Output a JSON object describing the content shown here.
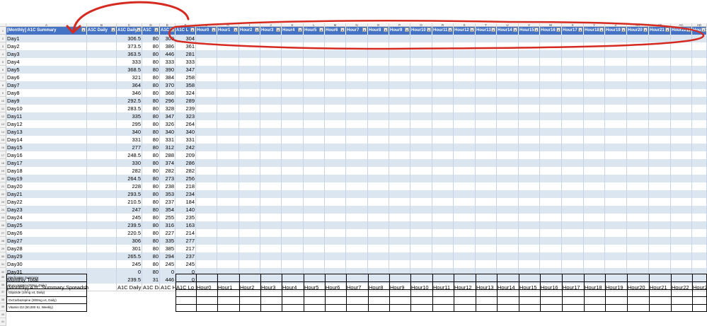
{
  "columns": [
    "A",
    "B",
    "C",
    "D",
    "E",
    "F",
    "G",
    "H",
    "I",
    "J",
    "K",
    "L",
    "M",
    "N",
    "O",
    "P",
    "Q",
    "R",
    "S",
    "T",
    "U",
    "V",
    "W",
    "X",
    "Y",
    "Z",
    "AA",
    "AB",
    "AC",
    "AD"
  ],
  "table": {
    "headers": [
      "[Monthly] A1C Summary",
      "A1C Daily",
      "A1C Daily A",
      "A1C",
      "A1C",
      "A1C L",
      "Hour0",
      "Hour1",
      "Hour2",
      "Hour3",
      "Hour4",
      "Hour5",
      "Hour6",
      "Hour7",
      "Hour8",
      "Hour9",
      "Hour10",
      "Hour11",
      "Hour12",
      "Hour13",
      "Hour14",
      "Hour15",
      "Hour16",
      "Hour17",
      "Hour18",
      "Hour19",
      "Hour20",
      "Hour21",
      "Hour22",
      "Hour23"
    ],
    "rows": [
      [
        "Day1",
        "306.5",
        "80",
        "309",
        "304"
      ],
      [
        "Day2",
        "373.5",
        "80",
        "386",
        "361"
      ],
      [
        "Day3",
        "363.5",
        "80",
        "446",
        "281"
      ],
      [
        "Day4",
        "333",
        "80",
        "333",
        "333"
      ],
      [
        "Day5",
        "368.5",
        "80",
        "390",
        "347"
      ],
      [
        "Day6",
        "321",
        "80",
        "384",
        "258"
      ],
      [
        "Day7",
        "364",
        "80",
        "370",
        "358"
      ],
      [
        "Day8",
        "346",
        "80",
        "368",
        "324"
      ],
      [
        "Day9",
        "292.5",
        "80",
        "296",
        "289"
      ],
      [
        "Day10",
        "283.5",
        "80",
        "328",
        "239"
      ],
      [
        "Day11",
        "335",
        "80",
        "347",
        "323"
      ],
      [
        "Day12",
        "295",
        "80",
        "326",
        "264"
      ],
      [
        "Day13",
        "340",
        "80",
        "340",
        "340"
      ],
      [
        "Day14",
        "331",
        "80",
        "331",
        "331"
      ],
      [
        "Day15",
        "277",
        "80",
        "312",
        "242"
      ],
      [
        "Day16",
        "248.5",
        "80",
        "288",
        "209"
      ],
      [
        "Day17",
        "330",
        "80",
        "374",
        "286"
      ],
      [
        "Day18",
        "282",
        "80",
        "282",
        "282"
      ],
      [
        "Day19",
        "264.5",
        "80",
        "273",
        "256"
      ],
      [
        "Day20",
        "228",
        "80",
        "238",
        "218"
      ],
      [
        "Day21",
        "293.5",
        "80",
        "353",
        "234"
      ],
      [
        "Day22",
        "210.5",
        "80",
        "237",
        "184"
      ],
      [
        "Day23",
        "247",
        "80",
        "354",
        "140"
      ],
      [
        "Day24",
        "245",
        "80",
        "255",
        "235"
      ],
      [
        "Day25",
        "239.5",
        "80",
        "316",
        "163"
      ],
      [
        "Day26",
        "220.5",
        "80",
        "227",
        "214"
      ],
      [
        "Day27",
        "306",
        "80",
        "335",
        "277"
      ],
      [
        "Day28",
        "301",
        "80",
        "385",
        "217"
      ],
      [
        "Day29",
        "265.5",
        "80",
        "294",
        "237"
      ],
      [
        "Day30",
        "245",
        "80",
        "245",
        "245"
      ],
      [
        "Day31",
        "0",
        "80",
        "0",
        "0"
      ]
    ],
    "total_label": "Monthly Total",
    "total": [
      "239.5",
      "31",
      "446",
      "0"
    ]
  },
  "repeat_headers": [
    "[Monthly] A1C Summary Spreadsh",
    "A1C Daily Av",
    "A1C Daily C",
    "A1C Hi",
    "A1C Lo",
    "Hour0",
    "Hour1",
    "Hour2",
    "Hour3",
    "Hour4",
    "Hour5",
    "Hour6",
    "Hour7",
    "Hour8",
    "Hour9",
    "Hour10",
    "Hour11",
    "Hour12",
    "Hour13",
    "Hour14",
    "Hour15",
    "Hour16",
    "Hour17",
    "Hour18",
    "Hour19",
    "Hour20",
    "Hour21",
    "Hour22",
    "Hour23"
  ],
  "medications": [
    "Medication Summary",
    "Rosuvastatin (20mg, Daily)",
    "Glipizide (10mg x4, Daily)",
    "OxCarbazepine (300mg x4, Daily)",
    "Vitamin D2 (50,000 IU, Weekly)"
  ],
  "colors": {
    "header_blue": "#4472c4",
    "band_blue": "#dce6f1",
    "annotation_red": "#d42a20"
  }
}
